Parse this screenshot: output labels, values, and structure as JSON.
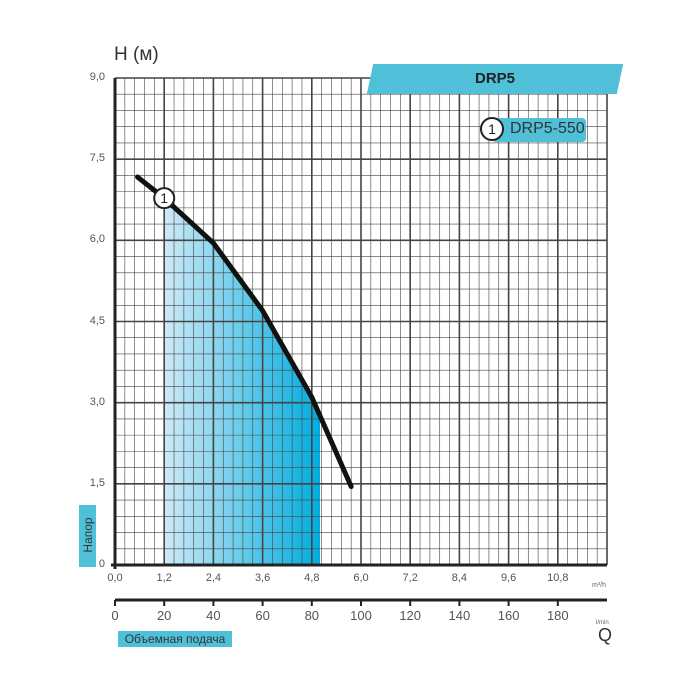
{
  "chart_data": {
    "type": "line",
    "title": "DRP5",
    "ylabel": "H (м)",
    "ylabel_side": "Напор",
    "xlabel": "Объемная подача",
    "xlabel_symbol": "Q",
    "x_unit": "m³/h",
    "x2_unit": "l/min",
    "xlim": [
      0,
      12
    ],
    "ylim": [
      0,
      9
    ],
    "x_ticks": [
      "0,0",
      "1,2",
      "2,4",
      "3,6",
      "4,8",
      "6,0",
      "7,2",
      "8,4",
      "9,6",
      "10,8"
    ],
    "x_tick_values": [
      0,
      1.2,
      2.4,
      3.6,
      4.8,
      6.0,
      7.2,
      8.4,
      9.6,
      10.8
    ],
    "x2_ticks": [
      "0",
      "20",
      "40",
      "60",
      "80",
      "100",
      "120",
      "140",
      "160",
      "180"
    ],
    "y_ticks": [
      "0",
      "1,5",
      "3,0",
      "4,5",
      "6,0",
      "7,5",
      "9,0"
    ],
    "y_tick_values": [
      0,
      1.5,
      3,
      4.5,
      6,
      7.5,
      9
    ],
    "grid": true,
    "legend": "top-right",
    "series": [
      {
        "name": "DRP5-550",
        "marker_label": "1",
        "x": [
          0.55,
          1.2,
          2.4,
          3.6,
          4.8,
          5.76
        ],
        "y": [
          7.17,
          6.78,
          5.95,
          4.7,
          3.1,
          1.45
        ]
      }
    ],
    "operating_range": [
      1.2,
      5.0
    ],
    "colors": {
      "accent": "#4fc0d8",
      "fill_light": "#cfeaf7",
      "fill_dark": "#00acde",
      "curve": "#111111"
    }
  }
}
